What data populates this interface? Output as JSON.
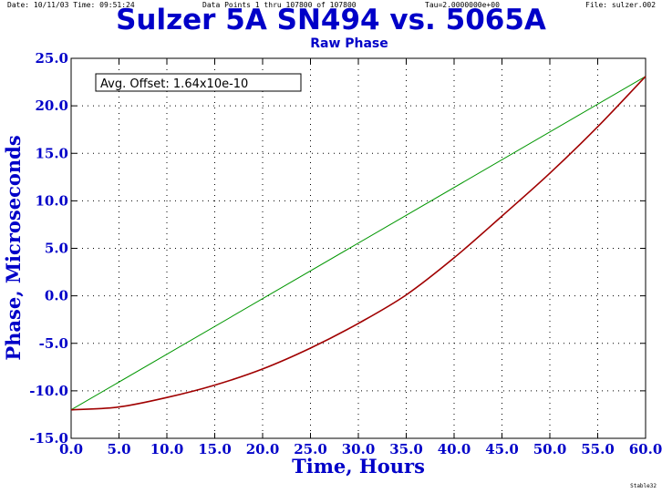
{
  "header": {
    "date_time": "Date: 10/11/03  Time: 09:51:24",
    "data_points": "Data Points 1 thru 107800 of 107800",
    "tau": "Tau=2.0000000e+00",
    "file": "File: sulzer.002"
  },
  "footer": "Stable32",
  "chart_data": {
    "type": "line",
    "title": "Sulzer 5A SN494 vs. 5065A",
    "subtitle": "Raw Phase",
    "xlabel": "Time, Hours",
    "ylabel": "Phase, Microseconds",
    "xlim": [
      0,
      60
    ],
    "ylim": [
      -15,
      25
    ],
    "xticks": [
      "0.0",
      "5.0",
      "10.0",
      "15.0",
      "20.0",
      "25.0",
      "30.0",
      "35.0",
      "40.0",
      "45.0",
      "50.0",
      "55.0",
      "60.0"
    ],
    "yticks": [
      "25.0",
      "20.0",
      "15.0",
      "10.0",
      "5.0",
      "0.0",
      "-5.0",
      "-10.0",
      "-15.0"
    ],
    "grid": true,
    "annotation": "Avg. Offset: 1.64x10e-10",
    "series": [
      {
        "color": "#009600",
        "x": [
          0,
          60
        ],
        "y": [
          -12.0,
          23.1
        ]
      },
      {
        "color": "#a00000",
        "x": [
          0,
          5,
          10,
          15,
          20,
          25,
          30,
          35,
          40,
          45,
          50,
          55,
          60
        ],
        "y": [
          -12.0,
          -11.7,
          -10.7,
          -9.4,
          -7.7,
          -5.5,
          -2.9,
          0.1,
          4.0,
          8.4,
          12.9,
          17.8,
          23.1
        ]
      }
    ]
  }
}
